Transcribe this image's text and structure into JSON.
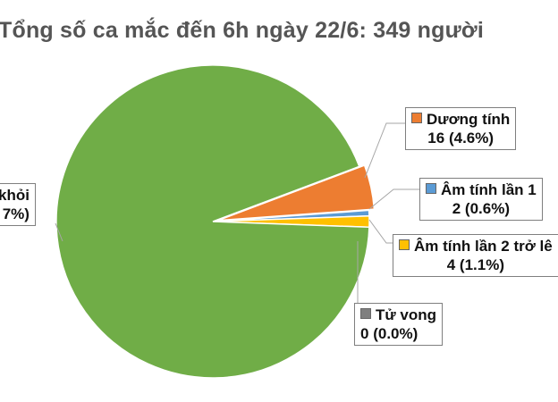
{
  "chart_data": {
    "type": "pie",
    "title": "Tổng số ca mắc đến 6h ngày 22/6: 349 người",
    "slices": [
      {
        "label": "Dương tính",
        "value": 16,
        "value_text": "16",
        "percent": "(4.6%)",
        "color": "#ed7d31"
      },
      {
        "label": "Âm tính lần 1",
        "value": 2,
        "value_text": "2",
        "percent": "(0.6%)",
        "color": "#5b9bd5"
      },
      {
        "label": "Âm tính lần 2 trở lê",
        "value": 4,
        "value_text": "4",
        "percent": "(1.1%)",
        "color": "#ffc000"
      },
      {
        "label": "Tử vong",
        "value": 0,
        "value_text": "0",
        "percent": "(0.0%)",
        "color": "#7f7f7f"
      },
      {
        "label": "khỏi",
        "value": 327,
        "value_text": "",
        "percent": "7%)",
        "color": "#70ad47"
      }
    ]
  }
}
